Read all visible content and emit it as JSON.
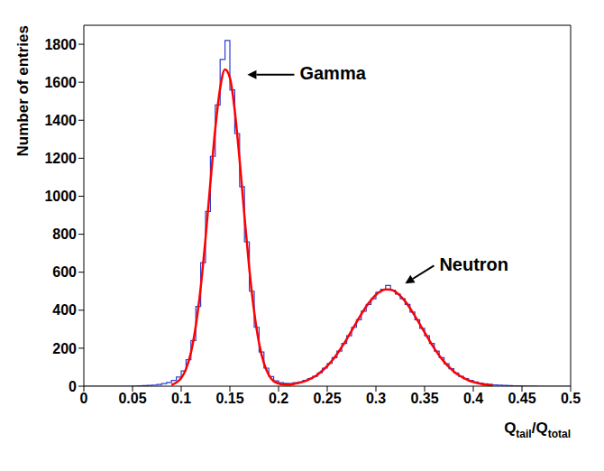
{
  "chart_data": {
    "type": "histogram",
    "xlabel": "Qtail/Qtotal",
    "ylabel": "Number of entries",
    "grid": false,
    "color": "#2b3fd0",
    "xlim": [
      0,
      0.5
    ],
    "xticks": [
      0,
      0.05,
      0.1,
      0.15,
      0.2,
      0.25,
      0.3,
      0.35,
      0.4,
      0.45,
      0.5
    ],
    "ylim": [
      0,
      1900
    ],
    "yticks": [
      0,
      200,
      400,
      600,
      800,
      1000,
      1200,
      1400,
      1600,
      1800
    ],
    "bins": [
      0,
      0.005,
      0.01,
      0.015,
      0.02,
      0.025,
      0.03,
      0.035,
      0.04,
      0.045,
      0.05,
      0.055,
      0.06,
      0.065,
      0.07,
      0.075,
      0.08,
      0.085,
      0.09,
      0.095,
      0.1,
      0.105,
      0.11,
      0.115,
      0.12,
      0.125,
      0.13,
      0.135,
      0.14,
      0.145,
      0.15,
      0.155,
      0.16,
      0.165,
      0.17,
      0.175,
      0.18,
      0.185,
      0.19,
      0.195,
      0.2,
      0.205,
      0.21,
      0.215,
      0.22,
      0.225,
      0.23,
      0.235,
      0.24,
      0.245,
      0.25,
      0.255,
      0.26,
      0.265,
      0.27,
      0.275,
      0.28,
      0.285,
      0.29,
      0.295,
      0.3,
      0.305,
      0.31,
      0.315,
      0.32,
      0.325,
      0.33,
      0.335,
      0.34,
      0.345,
      0.35,
      0.355,
      0.36,
      0.365,
      0.37,
      0.375,
      0.38,
      0.385,
      0.39,
      0.395,
      0.4,
      0.405,
      0.41,
      0.415,
      0.42,
      0.425,
      0.43,
      0.435,
      0.44,
      0.445,
      0.45,
      0.455,
      0.46,
      0.465,
      0.47,
      0.475,
      0.48,
      0.485,
      0.49,
      0.495,
      0.5
    ],
    "counts": [
      0,
      0,
      0,
      0,
      0,
      0,
      0,
      0,
      0,
      0,
      1,
      2,
      3,
      4,
      6,
      9,
      14,
      20,
      30,
      48,
      80,
      140,
      240,
      420,
      650,
      920,
      1210,
      1480,
      1720,
      1820,
      1560,
      1330,
      1050,
      760,
      500,
      310,
      180,
      95,
      50,
      28,
      18,
      15,
      14,
      18,
      22,
      30,
      40,
      52,
      70,
      95,
      120,
      150,
      185,
      225,
      265,
      310,
      350,
      395,
      430,
      460,
      495,
      510,
      530,
      505,
      485,
      460,
      430,
      390,
      350,
      305,
      265,
      225,
      185,
      150,
      118,
      92,
      70,
      52,
      40,
      30,
      22,
      16,
      12,
      9,
      7,
      5,
      4,
      3,
      2,
      2,
      1,
      1,
      1,
      0,
      0,
      0,
      0,
      0,
      0,
      0
    ],
    "fit": {
      "type": "line",
      "color": "#ff0000",
      "x": [
        0.09,
        0.095,
        0.1,
        0.105,
        0.11,
        0.115,
        0.12,
        0.125,
        0.13,
        0.135,
        0.14,
        0.145,
        0.15,
        0.155,
        0.16,
        0.165,
        0.17,
        0.175,
        0.18,
        0.185,
        0.19,
        0.195,
        0.2,
        0.205,
        0.21,
        0.215,
        0.22,
        0.225,
        0.23,
        0.235,
        0.24,
        0.245,
        0.25,
        0.255,
        0.26,
        0.265,
        0.27,
        0.275,
        0.28,
        0.285,
        0.29,
        0.295,
        0.3,
        0.305,
        0.31,
        0.315,
        0.32,
        0.325,
        0.33,
        0.335,
        0.34,
        0.345,
        0.35,
        0.355,
        0.36,
        0.365,
        0.37,
        0.375,
        0.38,
        0.385,
        0.39,
        0.395,
        0.4,
        0.405,
        0.41,
        0.415,
        0.42
      ],
      "values": [
        7,
        19,
        43,
        91,
        177,
        317,
        518,
        779,
        1072,
        1355,
        1569,
        1667,
        1624,
        1452,
        1190,
        894,
        616,
        390,
        226,
        120,
        59,
        26,
        14,
        9,
        8,
        11,
        16,
        23,
        33,
        45,
        61,
        82,
        106,
        135,
        169,
        207,
        248,
        292,
        336,
        379,
        419,
        453,
        481,
        500,
        509,
        508,
        497,
        476,
        447,
        411,
        370,
        327,
        283,
        240,
        199,
        162,
        129,
        101,
        77,
        58,
        43,
        31,
        22,
        15,
        10,
        7,
        5
      ]
    },
    "annotations": [
      {
        "text": "Gamma",
        "x": 0.168,
        "y": 1640
      },
      {
        "text": "Neutron",
        "x": 0.33,
        "y": 540
      }
    ]
  }
}
